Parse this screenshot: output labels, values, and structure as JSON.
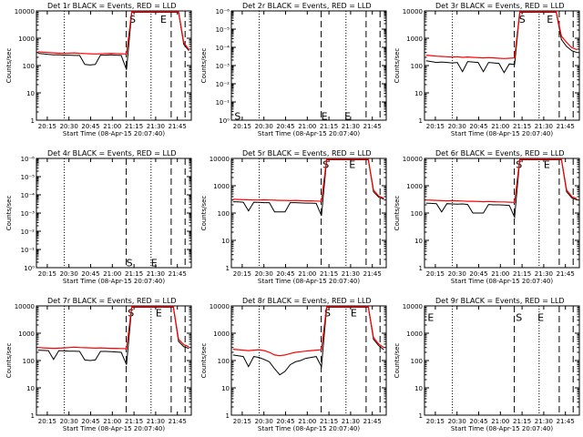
{
  "chart_data": [
    {
      "type": "line",
      "title": "Det 1r BLACK = Events, RED = LLD",
      "ylabel": "Counts/sec",
      "xlabel": "Start Time (08-Apr-15 20:07:40)",
      "yaxis": "log",
      "ylim": [
        1,
        10000
      ],
      "yticks": [
        "1",
        "10",
        "100",
        "1000",
        "10000"
      ],
      "xticks": [
        "20:15",
        "20:30",
        "20:45",
        "21:00",
        "21:15",
        "21:30",
        "21:45"
      ],
      "markers": [
        "S",
        "E"
      ],
      "series": [
        {
          "name": "Events",
          "color": "#000000",
          "values": [
            280,
            270,
            255,
            245,
            250,
            240,
            240,
            235,
            235,
            110,
            105,
            110,
            240,
            240,
            245,
            240,
            235,
            70,
            9000,
            9000,
            9000,
            9000,
            9000,
            9000,
            9000,
            9000,
            9000,
            9000,
            600,
            350
          ]
        },
        {
          "name": "LLD",
          "color": "#ff0000",
          "values": [
            320,
            310,
            300,
            290,
            285,
            280,
            285,
            290,
            280,
            275,
            270,
            265,
            270,
            275,
            280,
            275,
            270,
            265,
            9500,
            9500,
            9500,
            9500,
            9500,
            9500,
            9500,
            9500,
            9500,
            9500,
            700,
            380
          ]
        }
      ]
    },
    {
      "type": "line",
      "title": "Det 2r BLACK = Events, RED = LLD",
      "ylabel": "Counts/sec",
      "xlabel": "Start Time (08-Apr-15 20:07:40)",
      "yaxis": "log",
      "ylim": [
        1e-06,
        1
      ],
      "yticks": [
        "10⁰",
        "10⁻¹",
        "10⁻²",
        "10⁻³",
        "10⁻⁴",
        "10⁻⁵",
        "10⁻⁶"
      ],
      "xticks": [
        "20:15",
        "20:30",
        "20:45",
        "21:00",
        "21:15",
        "21:30",
        "21:45"
      ],
      "markers": [
        "S",
        "E",
        "E"
      ],
      "series": []
    },
    {
      "type": "line",
      "title": "Det 3r BLACK = Events, RED = LLD",
      "ylabel": "Counts/sec",
      "xlabel": "Start Time (08-Apr-15 20:07:40)",
      "yaxis": "log",
      "ylim": [
        1,
        10000
      ],
      "yticks": [
        "1",
        "10",
        "100",
        "1000",
        "10000"
      ],
      "xticks": [
        "20:15",
        "20:30",
        "20:45",
        "21:00",
        "21:15",
        "21:30",
        "21:45"
      ],
      "markers": [
        "S",
        "E"
      ],
      "series": [
        {
          "name": "Events",
          "color": "#000000",
          "values": [
            150,
            140,
            130,
            135,
            130,
            125,
            130,
            60,
            140,
            135,
            130,
            60,
            130,
            125,
            120,
            55,
            115,
            110,
            9000,
            9000,
            9000,
            9000,
            9000,
            9000,
            9000,
            9000,
            900,
            500,
            350,
            300
          ]
        },
        {
          "name": "LLD",
          "color": "#ff0000",
          "values": [
            240,
            230,
            220,
            215,
            210,
            205,
            210,
            200,
            205,
            200,
            195,
            190,
            195,
            190,
            185,
            180,
            185,
            190,
            9500,
            9500,
            9500,
            9500,
            9500,
            9500,
            9500,
            9500,
            1200,
            700,
            450,
            380
          ]
        }
      ]
    },
    {
      "type": "line",
      "title": "Det 4r BLACK = Events, RED = LLD",
      "ylabel": "Counts/sec",
      "xlabel": "Start Time (08-Apr-15 20:07:40)",
      "yaxis": "log",
      "ylim": [
        1e-06,
        1
      ],
      "yticks": [
        "10⁰",
        "10⁻¹",
        "10⁻²",
        "10⁻³",
        "10⁻⁴",
        "10⁻⁵",
        "10⁻⁶"
      ],
      "xticks": [
        "20:15",
        "20:30",
        "20:45",
        "21:00",
        "21:15",
        "21:30",
        "21:45"
      ],
      "markers": [
        "S",
        "E"
      ],
      "series": []
    },
    {
      "type": "line",
      "title": "Det 5r BLACK = Events, RED = LLD",
      "ylabel": "Counts/sec",
      "xlabel": "Start Time (08-Apr-15 20:07:40)",
      "yaxis": "log",
      "ylim": [
        1,
        10000
      ],
      "yticks": [
        "1",
        "10",
        "100",
        "1000",
        "10000"
      ],
      "xticks": [
        "20:15",
        "20:30",
        "20:45",
        "21:00",
        "21:15",
        "21:30",
        "21:45"
      ],
      "markers": [
        "S",
        "E"
      ],
      "series": [
        {
          "name": "Events",
          "color": "#000000",
          "values": [
            260,
            255,
            250,
            120,
            250,
            245,
            240,
            240,
            110,
            110,
            110,
            240,
            240,
            235,
            230,
            230,
            225,
            80,
            9000,
            9000,
            9000,
            9000,
            9000,
            9000,
            9000,
            9000,
            9000,
            600,
            380,
            320
          ]
        },
        {
          "name": "LLD",
          "color": "#ff0000",
          "values": [
            320,
            315,
            310,
            305,
            300,
            300,
            305,
            300,
            295,
            290,
            290,
            285,
            290,
            285,
            280,
            280,
            275,
            270,
            9500,
            9500,
            9500,
            9500,
            9500,
            9500,
            9500,
            9500,
            9500,
            700,
            420,
            350
          ]
        }
      ]
    },
    {
      "type": "line",
      "title": "Det 6r BLACK = Events, RED = LLD",
      "ylabel": "Counts/sec",
      "xlabel": "Start Time (08-Apr-15 20:07:40)",
      "yaxis": "log",
      "ylim": [
        1,
        10000
      ],
      "yticks": [
        "1",
        "10",
        "100",
        "1000",
        "10000"
      ],
      "xticks": [
        "20:15",
        "20:30",
        "20:45",
        "21:00",
        "21:15",
        "21:30",
        "21:45"
      ],
      "markers": [
        "S",
        "E"
      ],
      "series": [
        {
          "name": "Events",
          "color": "#000000",
          "values": [
            230,
            225,
            220,
            110,
            220,
            215,
            210,
            215,
            205,
            100,
            100,
            100,
            205,
            200,
            200,
            195,
            190,
            70,
            9000,
            9000,
            9000,
            9000,
            9000,
            9000,
            9000,
            9000,
            9000,
            600,
            360,
            300
          ]
        },
        {
          "name": "LLD",
          "color": "#ff0000",
          "values": [
            300,
            295,
            290,
            285,
            280,
            285,
            280,
            275,
            270,
            270,
            265,
            260,
            265,
            260,
            255,
            255,
            250,
            245,
            9500,
            9500,
            9500,
            9500,
            9500,
            9500,
            9500,
            9500,
            9500,
            700,
            400,
            330
          ]
        }
      ]
    },
    {
      "type": "line",
      "title": "Det 7r BLACK = Events, RED = LLD",
      "ylabel": "Counts/sec",
      "xlabel": "Start Time (08-Apr-15 20:07:40)",
      "yaxis": "log",
      "ylim": [
        1,
        10000
      ],
      "yticks": [
        "1",
        "10",
        "100",
        "1000",
        "10000"
      ],
      "xticks": [
        "20:15",
        "20:30",
        "20:45",
        "21:00",
        "21:15",
        "21:30",
        "21:45"
      ],
      "markers": [
        "S",
        "E"
      ],
      "series": [
        {
          "name": "Events",
          "color": "#000000",
          "values": [
            240,
            235,
            230,
            110,
            230,
            225,
            220,
            220,
            215,
            105,
            100,
            105,
            215,
            215,
            210,
            205,
            200,
            70,
            9000,
            9000,
            9000,
            9000,
            9000,
            9000,
            9000,
            9000,
            9000,
            500,
            320,
            280
          ]
        },
        {
          "name": "LLD",
          "color": "#ff0000",
          "values": [
            300,
            290,
            285,
            280,
            285,
            290,
            300,
            310,
            300,
            295,
            290,
            285,
            290,
            285,
            280,
            280,
            275,
            270,
            9500,
            9500,
            9500,
            9500,
            9500,
            9500,
            9500,
            9500,
            9500,
            600,
            380,
            320
          ]
        }
      ]
    },
    {
      "type": "line",
      "title": "Det 8r BLACK = Events, RED = LLD",
      "ylabel": "Counts/sec",
      "xlabel": "Start Time (08-Apr-15 20:07:40)",
      "yaxis": "log",
      "ylim": [
        1,
        10000
      ],
      "yticks": [
        "1",
        "10",
        "100",
        "1000",
        "10000"
      ],
      "xticks": [
        "20:15",
        "20:30",
        "20:45",
        "21:00",
        "21:15",
        "21:30",
        "21:45"
      ],
      "markers": [
        "S",
        "E"
      ],
      "series": [
        {
          "name": "Events",
          "color": "#000000",
          "values": [
            160,
            150,
            140,
            60,
            140,
            130,
            110,
            90,
            50,
            30,
            40,
            70,
            90,
            100,
            120,
            130,
            140,
            60,
            9000,
            9000,
            9000,
            9000,
            9000,
            9000,
            9000,
            9000,
            9000,
            600,
            350,
            250
          ]
        },
        {
          "name": "LLD",
          "color": "#ff0000",
          "values": [
            260,
            250,
            240,
            230,
            240,
            250,
            230,
            200,
            160,
            150,
            160,
            180,
            200,
            210,
            220,
            230,
            240,
            250,
            9500,
            9500,
            9500,
            9500,
            9500,
            9500,
            9500,
            9500,
            9500,
            700,
            400,
            300
          ]
        }
      ]
    },
    {
      "type": "line",
      "title": "Det 9r BLACK = Events, RED = LLD",
      "ylabel": "Counts/sec",
      "xlabel": "Start Time (08-Apr-15 20:07:40)",
      "yaxis": "log",
      "ylim": [
        1,
        10000
      ],
      "yticks": [
        "1",
        "10",
        "100",
        "1000",
        "10000"
      ],
      "xticks": [
        "20:15",
        "20:30",
        "20:45",
        "21:00",
        "21:15",
        "21:30",
        "21:45"
      ],
      "markers": [
        "E",
        "S",
        "E"
      ],
      "series": []
    }
  ]
}
